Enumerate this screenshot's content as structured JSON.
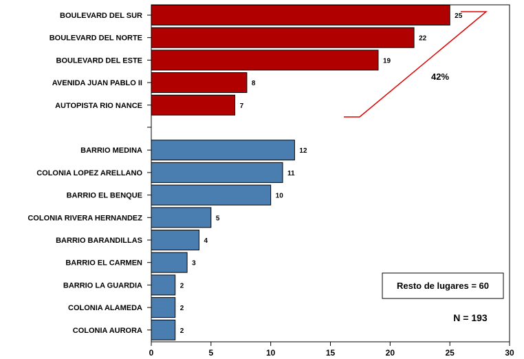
{
  "chart_data": {
    "type": "bar",
    "orientation": "horizontal",
    "categories": [
      "BOULEVARD DEL SUR",
      "BOULEVARD DEL NORTE",
      "BOULEVARD DEL ESTE",
      "AVENIDA JUAN PABLO II",
      "AUTOPISTA RIO NANCE",
      "BARRIO MEDINA",
      "COLONIA LOPEZ ARELLANO",
      "BARRIO EL BENQUE",
      "COLONIA RIVERA HERNANDEZ",
      "BARRIO BARANDILLAS",
      "BARRIO EL CARMEN",
      "BARRIO LA GUARDIA",
      "COLONIA ALAMEDA",
      "COLONIA AURORA"
    ],
    "values": [
      25,
      22,
      19,
      8,
      7,
      12,
      11,
      10,
      5,
      4,
      3,
      2,
      2,
      2
    ],
    "value_labels": [
      "25",
      "22",
      "19",
      "8",
      "7",
      "12",
      "11",
      "10",
      "5",
      "4",
      "3",
      "2",
      "2",
      "2"
    ],
    "groups": [
      {
        "members": [
          0,
          1,
          2,
          3,
          4
        ],
        "color": "#b00000"
      },
      {
        "members": [
          5,
          6,
          7,
          8,
          9,
          10,
          11,
          12,
          13
        ],
        "color": "#4a7eb0"
      }
    ],
    "xlim": [
      0,
      30
    ],
    "xticks": [
      "0",
      "5",
      "10",
      "15",
      "20",
      "25",
      "30"
    ],
    "grid": false,
    "annotations": {
      "bracket_label": "42%",
      "bracket_color": "#e00000",
      "bracket_label_color": "#c00000",
      "resto_box": "Resto de lugares = 60",
      "n_total": "N = 193"
    }
  }
}
